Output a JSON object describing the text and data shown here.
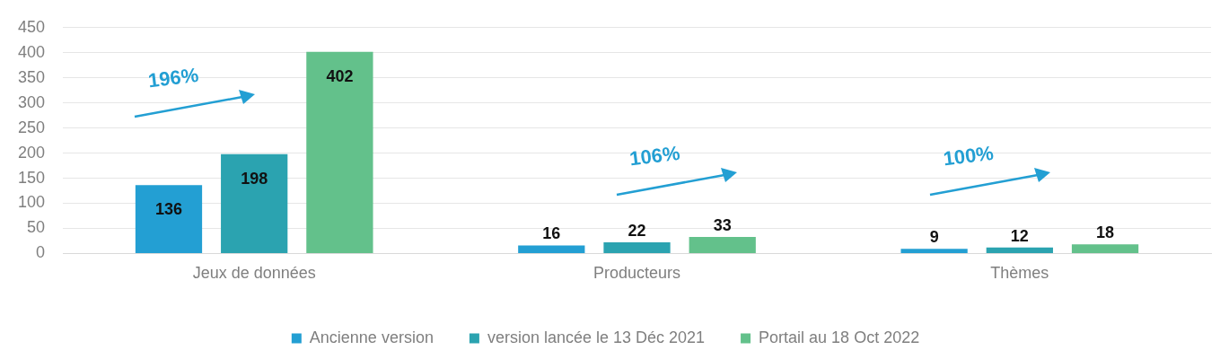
{
  "chart_data": {
    "type": "bar",
    "categories": [
      "Jeux de données",
      "Producteurs",
      "Thèmes"
    ],
    "series": [
      {
        "name": "Ancienne version",
        "color": "#239fd3",
        "values": [
          136,
          16,
          9
        ]
      },
      {
        "name": "version lancée le 13 Déc 2021",
        "color": "#2ba3b0",
        "values": [
          198,
          22,
          12
        ]
      },
      {
        "name": "Portail au 18 Oct 2022",
        "color": "#63c18b",
        "values": [
          402,
          33,
          18
        ]
      }
    ],
    "ylim": [
      0,
      450
    ],
    "yticks": [
      0,
      50,
      100,
      150,
      200,
      250,
      300,
      350,
      400,
      450
    ],
    "grid": "y",
    "legend": "bottom",
    "data_labels": true,
    "annotations": [
      "196%",
      "106%",
      "100%"
    ]
  }
}
